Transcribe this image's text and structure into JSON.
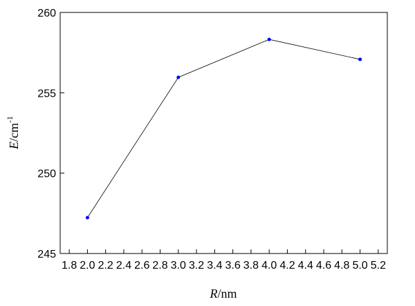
{
  "chart_data": {
    "type": "line",
    "xlabel": {
      "var": "R",
      "unit": "/nm"
    },
    "ylabel": {
      "var": "E",
      "unit": "/cm",
      "exp": "-1"
    },
    "x": [
      2,
      3,
      4,
      5
    ],
    "series": [
      {
        "color": "#000000",
        "marker_color": "#0000ff",
        "values": [
          247.23,
          255.96,
          258.32,
          257.08
        ]
      }
    ],
    "xlim": [
      1.7,
      5.3
    ],
    "xticks": [
      1.8,
      {
        "value": 2,
        "label": "2.0"
      },
      2.2,
      2.4,
      2.6,
      2.8,
      {
        "value": 3,
        "label": "3.0"
      },
      3.2,
      3.4,
      3.6,
      3.8,
      {
        "value": 4,
        "label": "4.0"
      },
      4.2,
      4.4,
      4.6,
      4.8,
      {
        "value": 5,
        "label": "5.0"
      },
      5.2
    ],
    "ylim": [
      245,
      260
    ],
    "yticks": [
      245,
      250,
      255,
      260
    ],
    "grid": false
  }
}
